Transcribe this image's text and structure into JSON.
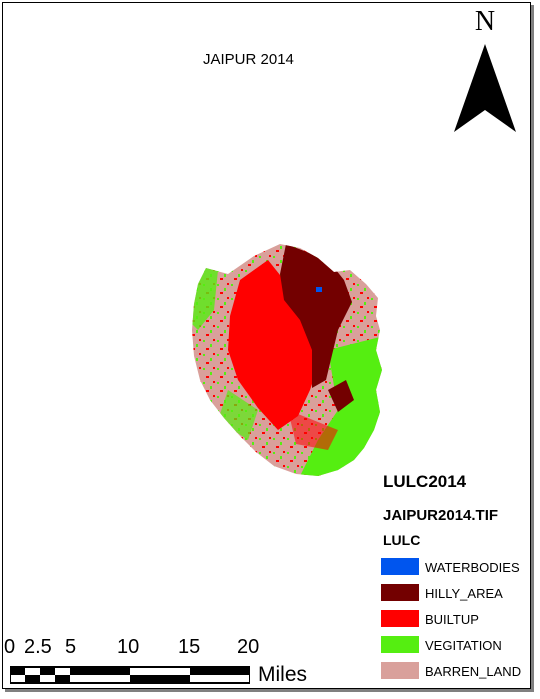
{
  "title": "JAIPUR 2014",
  "north_label": "N",
  "legend": {
    "heading": "LULC2014",
    "raster_name": "JAIPUR2014.TIF",
    "field_name": "LULC",
    "classes": [
      {
        "label": "WATERBODIES",
        "color": "#0055ee"
      },
      {
        "label": "HILLY_AREA",
        "color": "#730000"
      },
      {
        "label": "BUILTUP",
        "color": "#ff0000"
      },
      {
        "label": "VEGITATION",
        "color": "#55ee11"
      },
      {
        "label": "BARREN_LAND",
        "color": "#d9a09b"
      }
    ]
  },
  "scale_bar": {
    "ticks": [
      "0",
      "2.5",
      "5",
      "10",
      "15",
      "20"
    ],
    "unit": "Miles"
  }
}
